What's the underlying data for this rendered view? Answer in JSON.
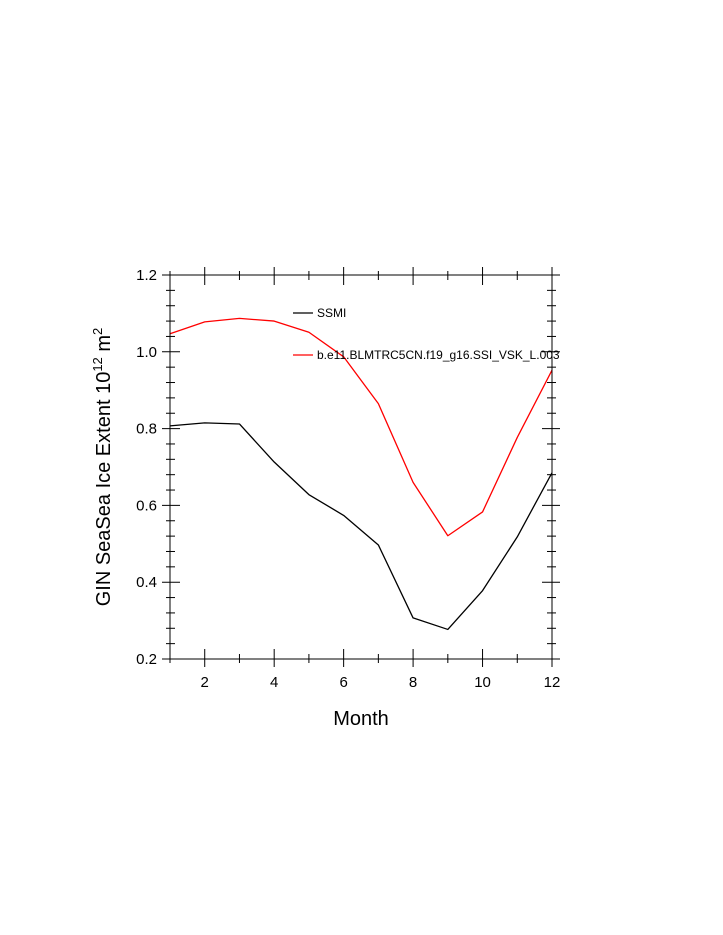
{
  "chart_data": {
    "type": "line",
    "title": "",
    "xlabel": "Month",
    "ylabel": "GIN SeaSea Ice Extent 10",
    "ylabel_superscript": "12",
    "ylabel_unit": "m",
    "ylabel_unit_superscript": "2",
    "xlim": [
      1,
      12
    ],
    "ylim": [
      0.2,
      1.2
    ],
    "x_ticks": [
      2,
      4,
      6,
      8,
      10,
      12
    ],
    "x_tick_labels": [
      "2",
      "4",
      "6",
      "8",
      "10",
      "12"
    ],
    "y_ticks": [
      0.2,
      0.4,
      0.6,
      0.8,
      1.0,
      1.2
    ],
    "y_tick_labels": [
      "0.2",
      "0.4",
      "0.6",
      "0.8",
      "1.0",
      "1.2"
    ],
    "grid": false,
    "legend_position": "top-right",
    "x": [
      1,
      2,
      3,
      4,
      5,
      6,
      7,
      8,
      9,
      10,
      11,
      12
    ],
    "series": [
      {
        "name": "SSMI",
        "color": "#000000",
        "values": [
          0.807,
          0.815,
          0.812,
          0.713,
          0.628,
          0.574,
          0.497,
          0.307,
          0.277,
          0.378,
          0.518,
          0.685
        ]
      },
      {
        "name": "b.e11.BLMTRC5CN.f19_g16.SSI_VSK_L.003",
        "color": "#ff0000",
        "values": [
          1.047,
          1.078,
          1.087,
          1.08,
          1.051,
          0.987,
          0.865,
          0.66,
          0.521,
          0.583,
          0.777,
          0.952
        ]
      }
    ]
  }
}
